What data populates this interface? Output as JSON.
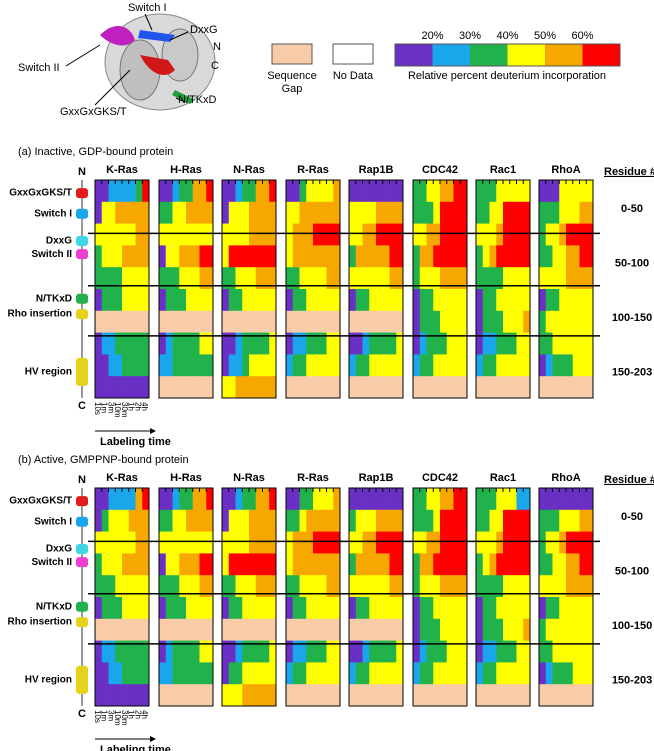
{
  "figure": {
    "structure_labels": {
      "switch1": "Switch I",
      "dxxg": "DxxG",
      "n": "N",
      "c": "C",
      "switch2": "Switch II",
      "ploop": "GxxGxGKS/T",
      "ntkxd": "N/TKxD"
    },
    "legend": {
      "gap_lines": [
        "Sequence",
        "Gap"
      ],
      "nodata": "No Data",
      "scale_ticks": [
        "20%",
        "30%",
        "40%",
        "50%",
        "60%"
      ],
      "scale_title": "Relative percent deuterium incorporation",
      "colors": [
        "#6a2fc4",
        "#1aa6ea",
        "#22b24c",
        "#ffff00",
        "#f6a800",
        "#ff0000"
      ],
      "gap_color": "#f9cca9",
      "nodata_color": "#ffffff"
    },
    "proteins": [
      "K-Ras",
      "H-Ras",
      "N-Ras",
      "R-Ras",
      "Rap1B",
      "CDC42",
      "Rac1",
      "RhoA"
    ],
    "residue_header": "Residue #",
    "residue_ranges": [
      "0-50",
      "50-100",
      "100-150",
      "150-203"
    ],
    "track": {
      "n": "N",
      "c": "C",
      "regions": [
        {
          "label": "GxxGxGKS/T",
          "color": "#e31b1b"
        },
        {
          "label": "Switch I",
          "color": "#1aa6ea"
        },
        {
          "label": "DxxG",
          "color": "#3fd7e6"
        },
        {
          "label": "Switch II",
          "color": "#ee3fd0"
        },
        {
          "label": "N/TKxD",
          "color": "#22b24c"
        },
        {
          "label": "Rho insertion",
          "color": "#e6d21a"
        },
        {
          "label": "HV region",
          "color": "#e6d21a"
        }
      ]
    },
    "time_points": [
      "10s",
      "1m",
      "3m",
      "10m",
      "30m",
      "1h",
      "2h",
      "4h"
    ],
    "time_axis": "Labeling time",
    "panels": [
      {
        "title": "(a) Inactive, GDP-bound protein",
        "maps": [
          [
            "00111125",
            "03344444",
            "33333344",
            "23334444",
            "22223333",
            "02223333",
            "gggggggg",
            "01122222",
            "00112222",
            "00000000"
          ],
          [
            "00122445",
            "22334444",
            "33333333",
            "03344455",
            "22233344",
            "02223333",
            "gggggggg",
            "01222233",
            "11222222",
            "gggggggg"
          ],
          [
            "00122445",
            "03334444",
            "33334444",
            "35555555",
            "22333444",
            "02233333",
            "gggggggg",
            "00122223",
            "01123333",
            "33444444"
          ],
          [
            "00233334",
            "33444444",
            "34445555",
            "34444444",
            "22333344",
            "02233333",
            "gggggggg",
            "01122233",
            "12233333",
            "gggggggg"
          ],
          [
            "00000000",
            "33334444",
            "33445555",
            "24444455",
            "33333344",
            "02233333",
            "gggggggg",
            "00122223",
            "12233333",
            "gggggggg"
          ],
          [
            "22334455",
            "22235555",
            "33445555",
            "24455555",
            "23334444",
            "02233333",
            "02223333",
            "01222333",
            "12233333",
            "gggggggg"
          ],
          [
            "22233333",
            "22335555",
            "33345555",
            "23455555",
            "22223333",
            "02233333",
            "02223334",
            "01122233",
            "12233333",
            "gggggggg"
          ],
          [
            "00033333",
            "22233344",
            "23345555",
            "22334455",
            "33334444",
            "02233333",
            "23333333",
            "22333333",
            "01222333",
            "gggggggg"
          ]
        ]
      },
      {
        "title": "(b) Active, GMPPNP-bound protein",
        "maps": [
          [
            "00111145",
            "02333444",
            "33333344",
            "23334444",
            "22233333",
            "02223333",
            "gggggggg",
            "01122222",
            "00112222",
            "00000000"
          ],
          [
            "00122445",
            "22334444",
            "33333333",
            "03344455",
            "22233344",
            "02223333",
            "gggggggg",
            "01222233",
            "11222222",
            "gggggggg"
          ],
          [
            "00122445",
            "03334444",
            "33334444",
            "35555555",
            "22333444",
            "02233333",
            "gggggggg",
            "00122223",
            "02233333",
            "33344444"
          ],
          [
            "00223334",
            "22344444",
            "34445555",
            "34444444",
            "22333344",
            "02233333",
            "gggggggg",
            "01122233",
            "12233333",
            "gggggggg"
          ],
          [
            "00000000",
            "23334444",
            "33445555",
            "24444455",
            "33333344",
            "02233333",
            "gggggggg",
            "00122223",
            "12233333",
            "gggggggg"
          ],
          [
            "22334455",
            "22235555",
            "33445555",
            "24455555",
            "23334444",
            "02233333",
            "02223333",
            "01222333",
            "12233333",
            "gggggggg"
          ],
          [
            "22233311",
            "22335555",
            "33345555",
            "23455555",
            "22223333",
            "02233333",
            "02223334",
            "01122233",
            "12233333",
            "gggggggg"
          ],
          [
            "00000000",
            "22233344",
            "23345555",
            "22334455",
            "33334444",
            "02233333",
            "23333333",
            "22333333",
            "01222333",
            "gggggggg"
          ]
        ]
      }
    ]
  }
}
